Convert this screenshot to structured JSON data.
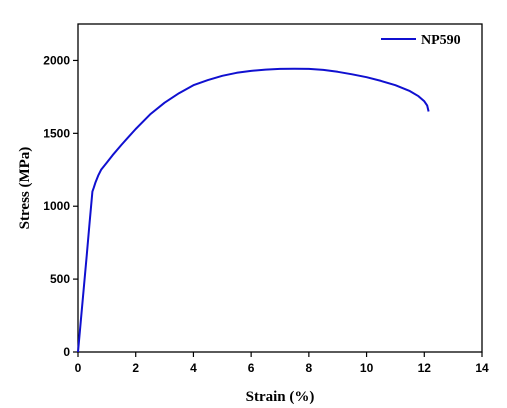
{
  "chart_data": {
    "type": "line",
    "title": "",
    "xlabel": "Strain (%)",
    "ylabel": "Stress (MPa)",
    "xlim": [
      0,
      14
    ],
    "ylim": [
      0,
      2250
    ],
    "xticks": [
      0,
      2,
      4,
      6,
      8,
      10,
      12,
      14
    ],
    "yticks": [
      0,
      500,
      1000,
      1500,
      2000
    ],
    "grid": false,
    "legend_position": "top-right",
    "series": [
      {
        "name": "NP590",
        "color": "#1010d0",
        "x": [
          0,
          0.1,
          0.2,
          0.3,
          0.4,
          0.5,
          0.55,
          0.6,
          0.7,
          0.8,
          1.0,
          1.2,
          1.5,
          2.0,
          2.5,
          3.0,
          3.5,
          4.0,
          4.5,
          5.0,
          5.5,
          6.0,
          6.5,
          7.0,
          7.5,
          8.0,
          8.5,
          9.0,
          9.5,
          10.0,
          10.5,
          11.0,
          11.5,
          11.8,
          12.0,
          12.1,
          12.15
        ],
        "y": [
          0,
          220,
          440,
          660,
          880,
          1100,
          1130,
          1160,
          1210,
          1250,
          1300,
          1350,
          1420,
          1530,
          1630,
          1710,
          1775,
          1830,
          1865,
          1895,
          1915,
          1928,
          1937,
          1942,
          1943,
          1942,
          1935,
          1922,
          1905,
          1885,
          1860,
          1830,
          1790,
          1755,
          1720,
          1690,
          1650
        ]
      }
    ]
  }
}
